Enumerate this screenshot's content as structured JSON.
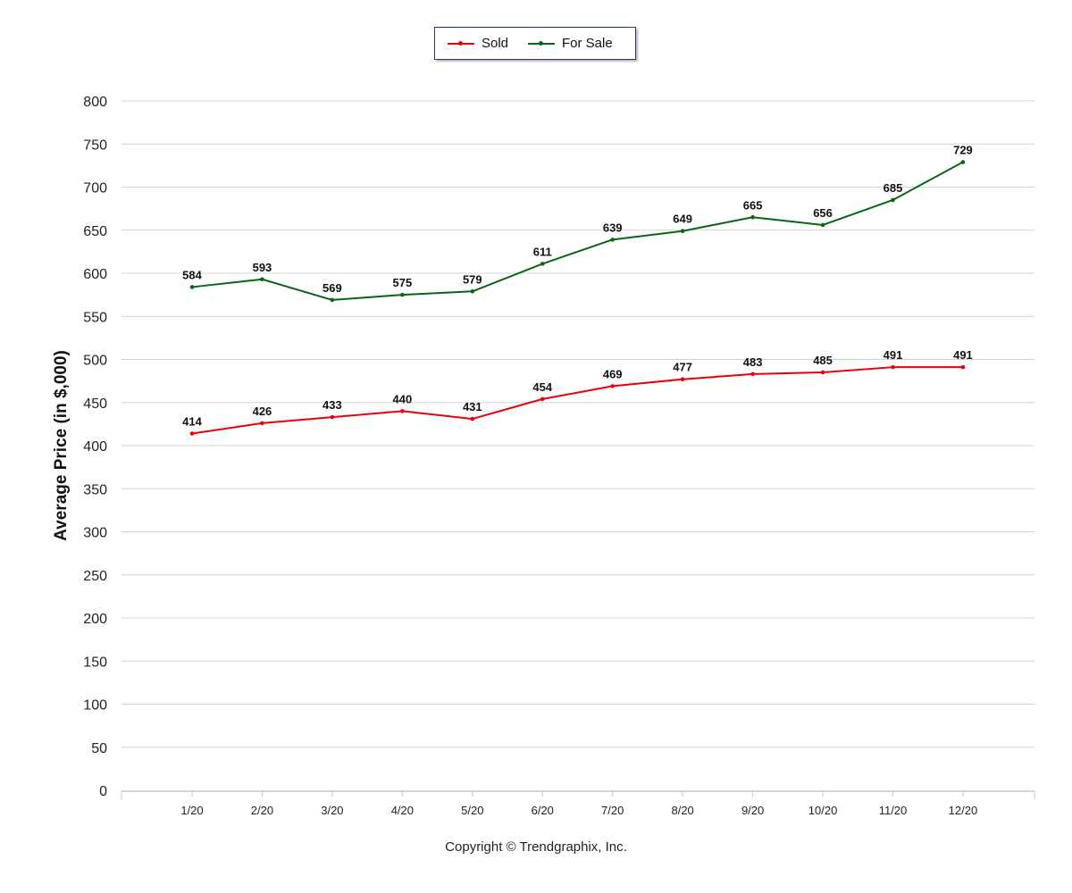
{
  "chart_data": {
    "type": "line",
    "categories": [
      "1/20",
      "2/20",
      "3/20",
      "4/20",
      "5/20",
      "6/20",
      "7/20",
      "8/20",
      "9/20",
      "10/20",
      "11/20",
      "12/20"
    ],
    "series": [
      {
        "name": "Sold",
        "color": "#e8000b",
        "values": [
          414,
          426,
          433,
          440,
          431,
          454,
          469,
          477,
          483,
          485,
          491,
          491
        ]
      },
      {
        "name": "For Sale",
        "color": "#0a6614",
        "values": [
          584,
          593,
          569,
          575,
          579,
          611,
          639,
          649,
          665,
          656,
          685,
          729
        ]
      }
    ],
    "ylabel": "Average Price (in $,000)",
    "xlabel": "",
    "ylim": [
      0,
      800
    ],
    "yticks": [
      0,
      50,
      100,
      150,
      200,
      250,
      300,
      350,
      400,
      450,
      500,
      550,
      600,
      650,
      700,
      750,
      800
    ],
    "grid": true,
    "legend_position": "top-center",
    "data_labels": true
  },
  "footer": {
    "copyright": "Copyright © Trendgraphix, Inc."
  }
}
